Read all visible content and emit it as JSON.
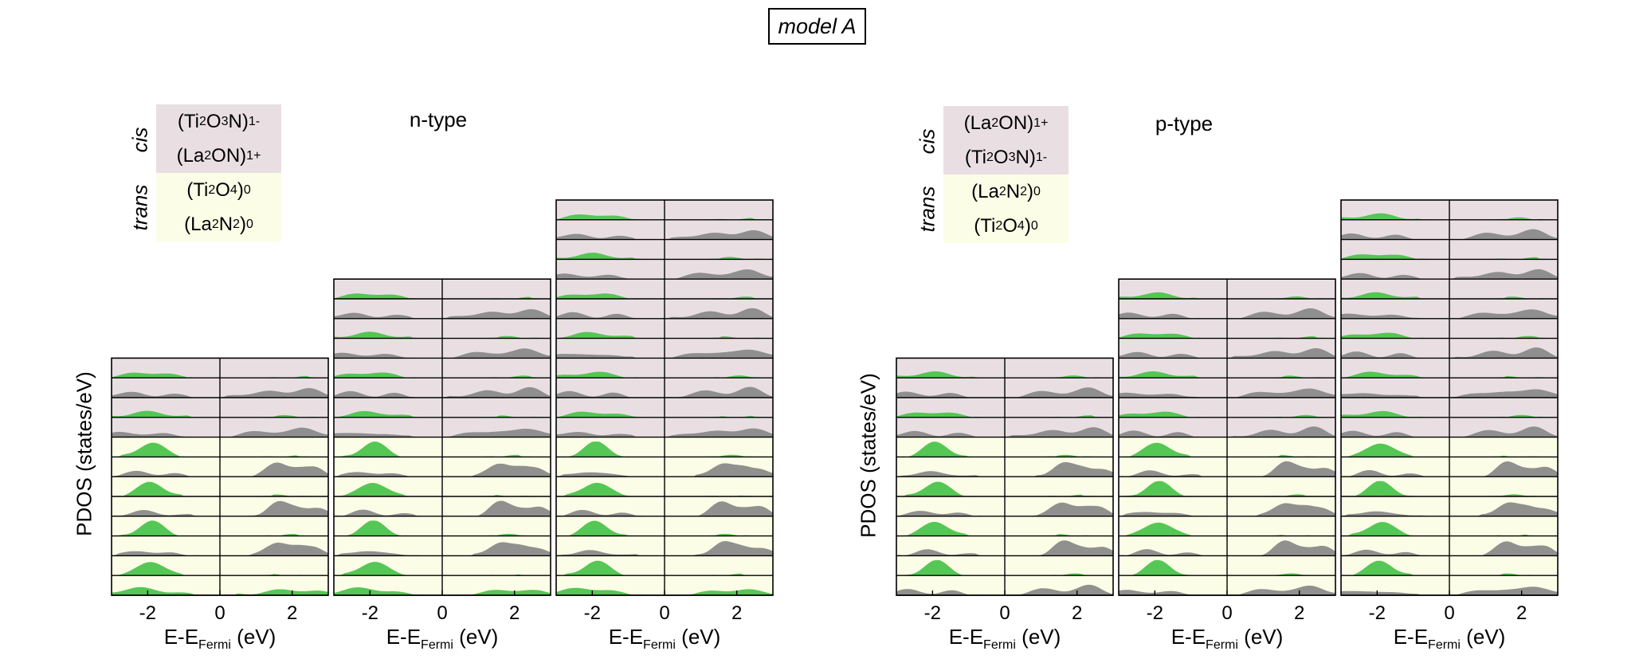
{
  "figure": {
    "model_label": "model A",
    "xlabel_prefix": "E-E",
    "xlabel_sub": "Fermi",
    "xlabel_suffix": " (eV)",
    "ylabel": "PDOS (states/eV)"
  },
  "colors": {
    "cis_bg": "#e9dfe3",
    "trans_bg": "#fcfde7",
    "gray_fill": "#8a8a8a",
    "green_fill": "#4cc44c"
  },
  "n_type": {
    "label": "n-type",
    "legend": {
      "cis_label": "cis",
      "trans_label": "trans",
      "rows": [
        {
          "base": "(Ti",
          "s1": "2",
          "m1": "O",
          "s2": "3",
          "m2": "N)",
          "sup": "1-",
          "kind": "cis"
        },
        {
          "base": "(La",
          "s1": "2",
          "m1": "ON)",
          "s2": "",
          "m2": "",
          "sup": "1+",
          "kind": "cis"
        },
        {
          "base": "(Ti",
          "s1": "2",
          "m1": "O",
          "s2": "4",
          "m2": ")",
          "sup": "0",
          "kind": "trans"
        },
        {
          "base": "(La",
          "s1": "2",
          "m1": "N",
          "s2": "2",
          "m2": ")",
          "sup": "0",
          "kind": "trans"
        }
      ]
    }
  },
  "p_type": {
    "label": "p-type",
    "legend": {
      "cis_label": "cis",
      "trans_label": "trans",
      "rows": [
        {
          "base": "(La",
          "s1": "2",
          "m1": "ON)",
          "s2": "",
          "m2": "",
          "sup": "1+",
          "kind": "cis"
        },
        {
          "base": "(Ti",
          "s1": "2",
          "m1": "O",
          "s2": "3",
          "m2": "N)",
          "sup": "1-",
          "kind": "cis"
        },
        {
          "base": "(La",
          "s1": "2",
          "m1": "N",
          "s2": "2",
          "m2": ")",
          "sup": "0",
          "kind": "trans"
        },
        {
          "base": "(Ti",
          "s1": "2",
          "m1": "O",
          "s2": "4",
          "m2": ")",
          "sup": "0",
          "kind": "trans"
        }
      ]
    }
  },
  "chart_data": {
    "type": "area",
    "xlim": [
      -3,
      3
    ],
    "xticks": [
      -2,
      0,
      2
    ],
    "xtick_labels": [
      "-2",
      "0",
      "2"
    ],
    "panels": [
      {
        "group": "n",
        "column": 1,
        "layers_cis": 4,
        "layers_trans": 8
      },
      {
        "group": "n",
        "column": 2,
        "layers_cis": 8,
        "layers_trans": 8
      },
      {
        "group": "n",
        "column": 3,
        "layers_cis": 12,
        "layers_trans": 8
      },
      {
        "group": "p",
        "column": 1,
        "layers_cis": 4,
        "layers_trans": 8
      },
      {
        "group": "p",
        "column": 2,
        "layers_cis": 8,
        "layers_trans": 8
      },
      {
        "group": "p",
        "column": 3,
        "layers_cis": 12,
        "layers_trans": 8
      }
    ]
  }
}
